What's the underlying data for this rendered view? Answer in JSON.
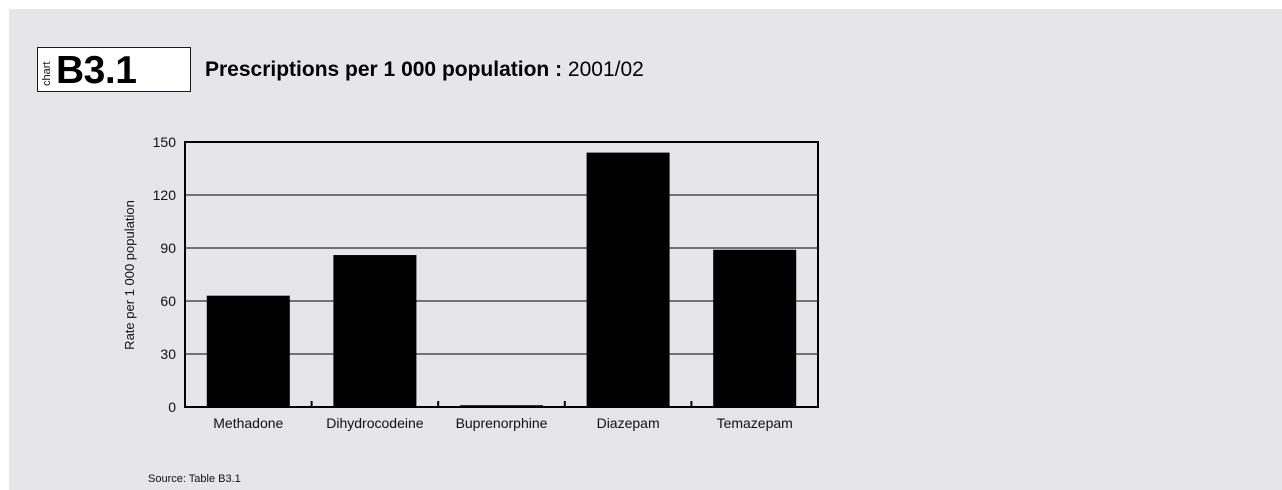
{
  "header": {
    "kind": "chart",
    "code": "B3.1",
    "title_bold": "Prescriptions per 1 000 population :",
    "title_period": " 2001/02"
  },
  "footer": {
    "source": "Source: Table B3.1"
  },
  "chart_data": {
    "type": "bar",
    "categories": [
      "Methadone",
      "Dihydrocodeine",
      "Buprenorphine",
      "Diazepam",
      "Temazepam"
    ],
    "values": [
      63,
      86,
      1,
      144,
      89
    ],
    "xlabel": "",
    "ylabel": "Rate per 1 000 population",
    "ylim": [
      0,
      150
    ],
    "yticks": [
      0,
      30,
      60,
      90,
      120,
      150
    ],
    "grid": true,
    "bar_color": "#000000"
  }
}
